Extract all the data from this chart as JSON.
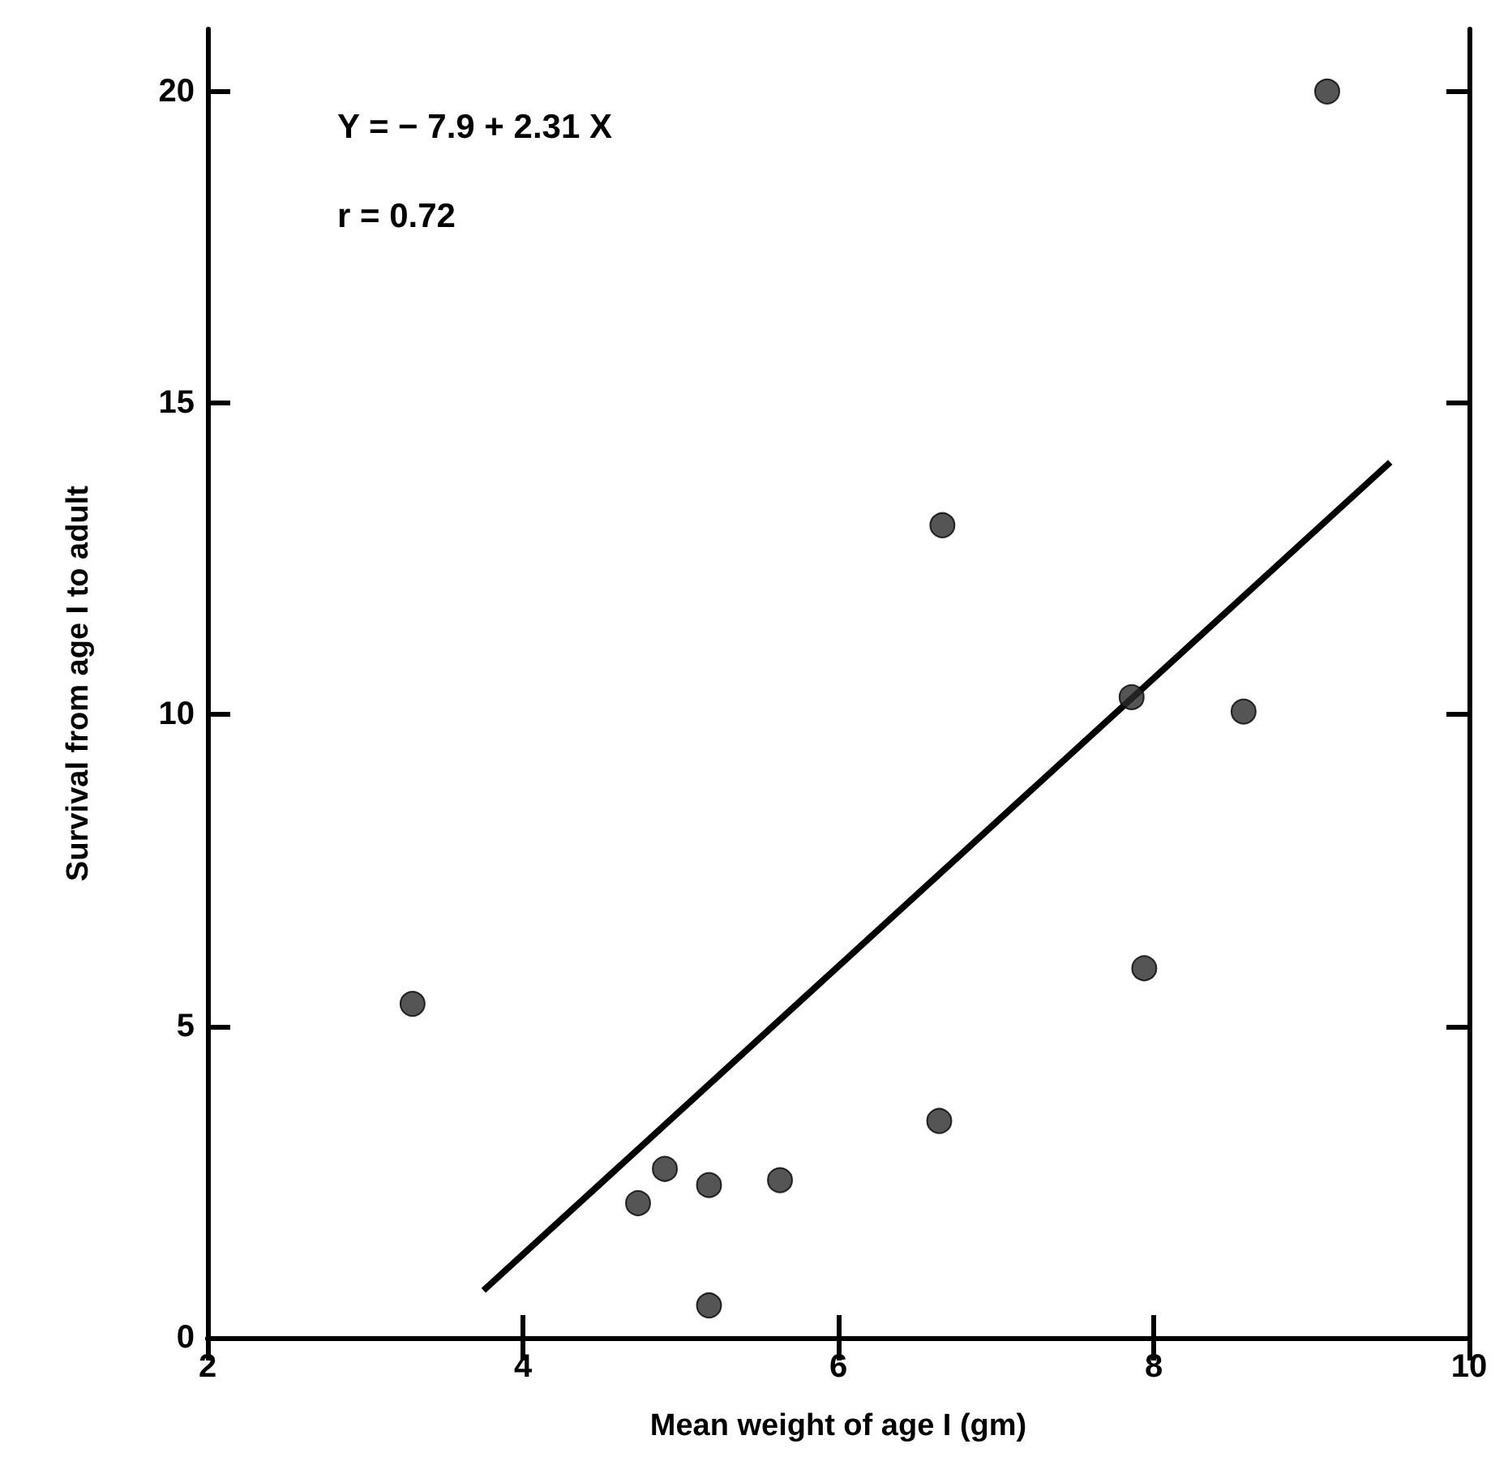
{
  "chart_data": {
    "type": "scatter",
    "xlabel": "Mean weight of age I (gm)",
    "ylabel": "Survival from age I to adult",
    "xlim": [
      2,
      10
    ],
    "xticks": [
      2,
      4,
      6,
      8,
      10
    ],
    "ylim": [
      0,
      21
    ],
    "yticks": [
      0,
      5,
      10,
      15,
      20
    ],
    "grid": false,
    "marker": "circle",
    "annotations": [
      "Y = − 7.9 + 2.31 X",
      "r = 0.72"
    ],
    "series": [
      {
        "color": "#2a2a2a",
        "x": [
          3.3,
          4.73,
          4.9,
          5.18,
          5.18,
          5.63,
          6.64,
          6.66,
          7.86,
          7.94,
          8.57,
          9.1
        ],
        "values": [
          5.36,
          2.16,
          2.71,
          2.45,
          0.52,
          2.53,
          3.48,
          13.04,
          10.28,
          5.93,
          10.05,
          20.0
        ]
      },
      {
        "type": "line",
        "color": "#000000",
        "marker": "none",
        "line_style": "solid",
        "x": [
          3.75,
          9.5
        ],
        "values": [
          0.76,
          14.05
        ]
      }
    ]
  }
}
